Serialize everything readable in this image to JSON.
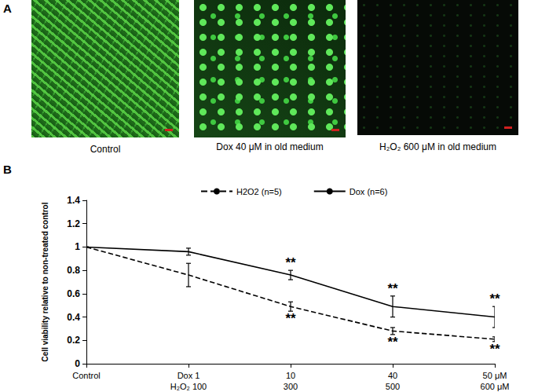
{
  "panel_labels": [
    "A",
    "B"
  ],
  "images": [
    {
      "caption": "Control"
    },
    {
      "caption": "Dox 40 μM in old medium"
    },
    {
      "caption": "H₂O₂ 600 μM in old medium"
    }
  ],
  "chart_data": {
    "type": "line",
    "y_label": "Cell viability relative to non-treated control",
    "categories": [
      "Control",
      "Dox 1\nH₂O₂ 100",
      "10\n300",
      "40\n500",
      "50 μM\n600 μM"
    ],
    "series": [
      {
        "name": "H2O2 (n=5)",
        "color": "#000000",
        "line_style": "dashed",
        "values": [
          1,
          0.76,
          0.49,
          0.28,
          0.21
        ],
        "errors": [
          0,
          0.1,
          0.04,
          0.03,
          0.02
        ],
        "significance": [
          null,
          null,
          "**",
          "**",
          "**"
        ]
      },
      {
        "name": "Dox (n=6)",
        "color": "#000000",
        "line_style": "solid",
        "values": [
          1,
          0.96,
          0.76,
          0.49,
          0.4
        ],
        "errors": [
          0,
          0.03,
          0.04,
          0.09,
          0.09
        ],
        "significance": [
          null,
          null,
          "**",
          "**",
          "**"
        ]
      }
    ],
    "ylim": [
      0,
      1.4
    ],
    "yticks": [
      0,
      0.2,
      0.4,
      0.6,
      0.8,
      1,
      1.2,
      1.4
    ],
    "grid": false,
    "legend": "top"
  }
}
